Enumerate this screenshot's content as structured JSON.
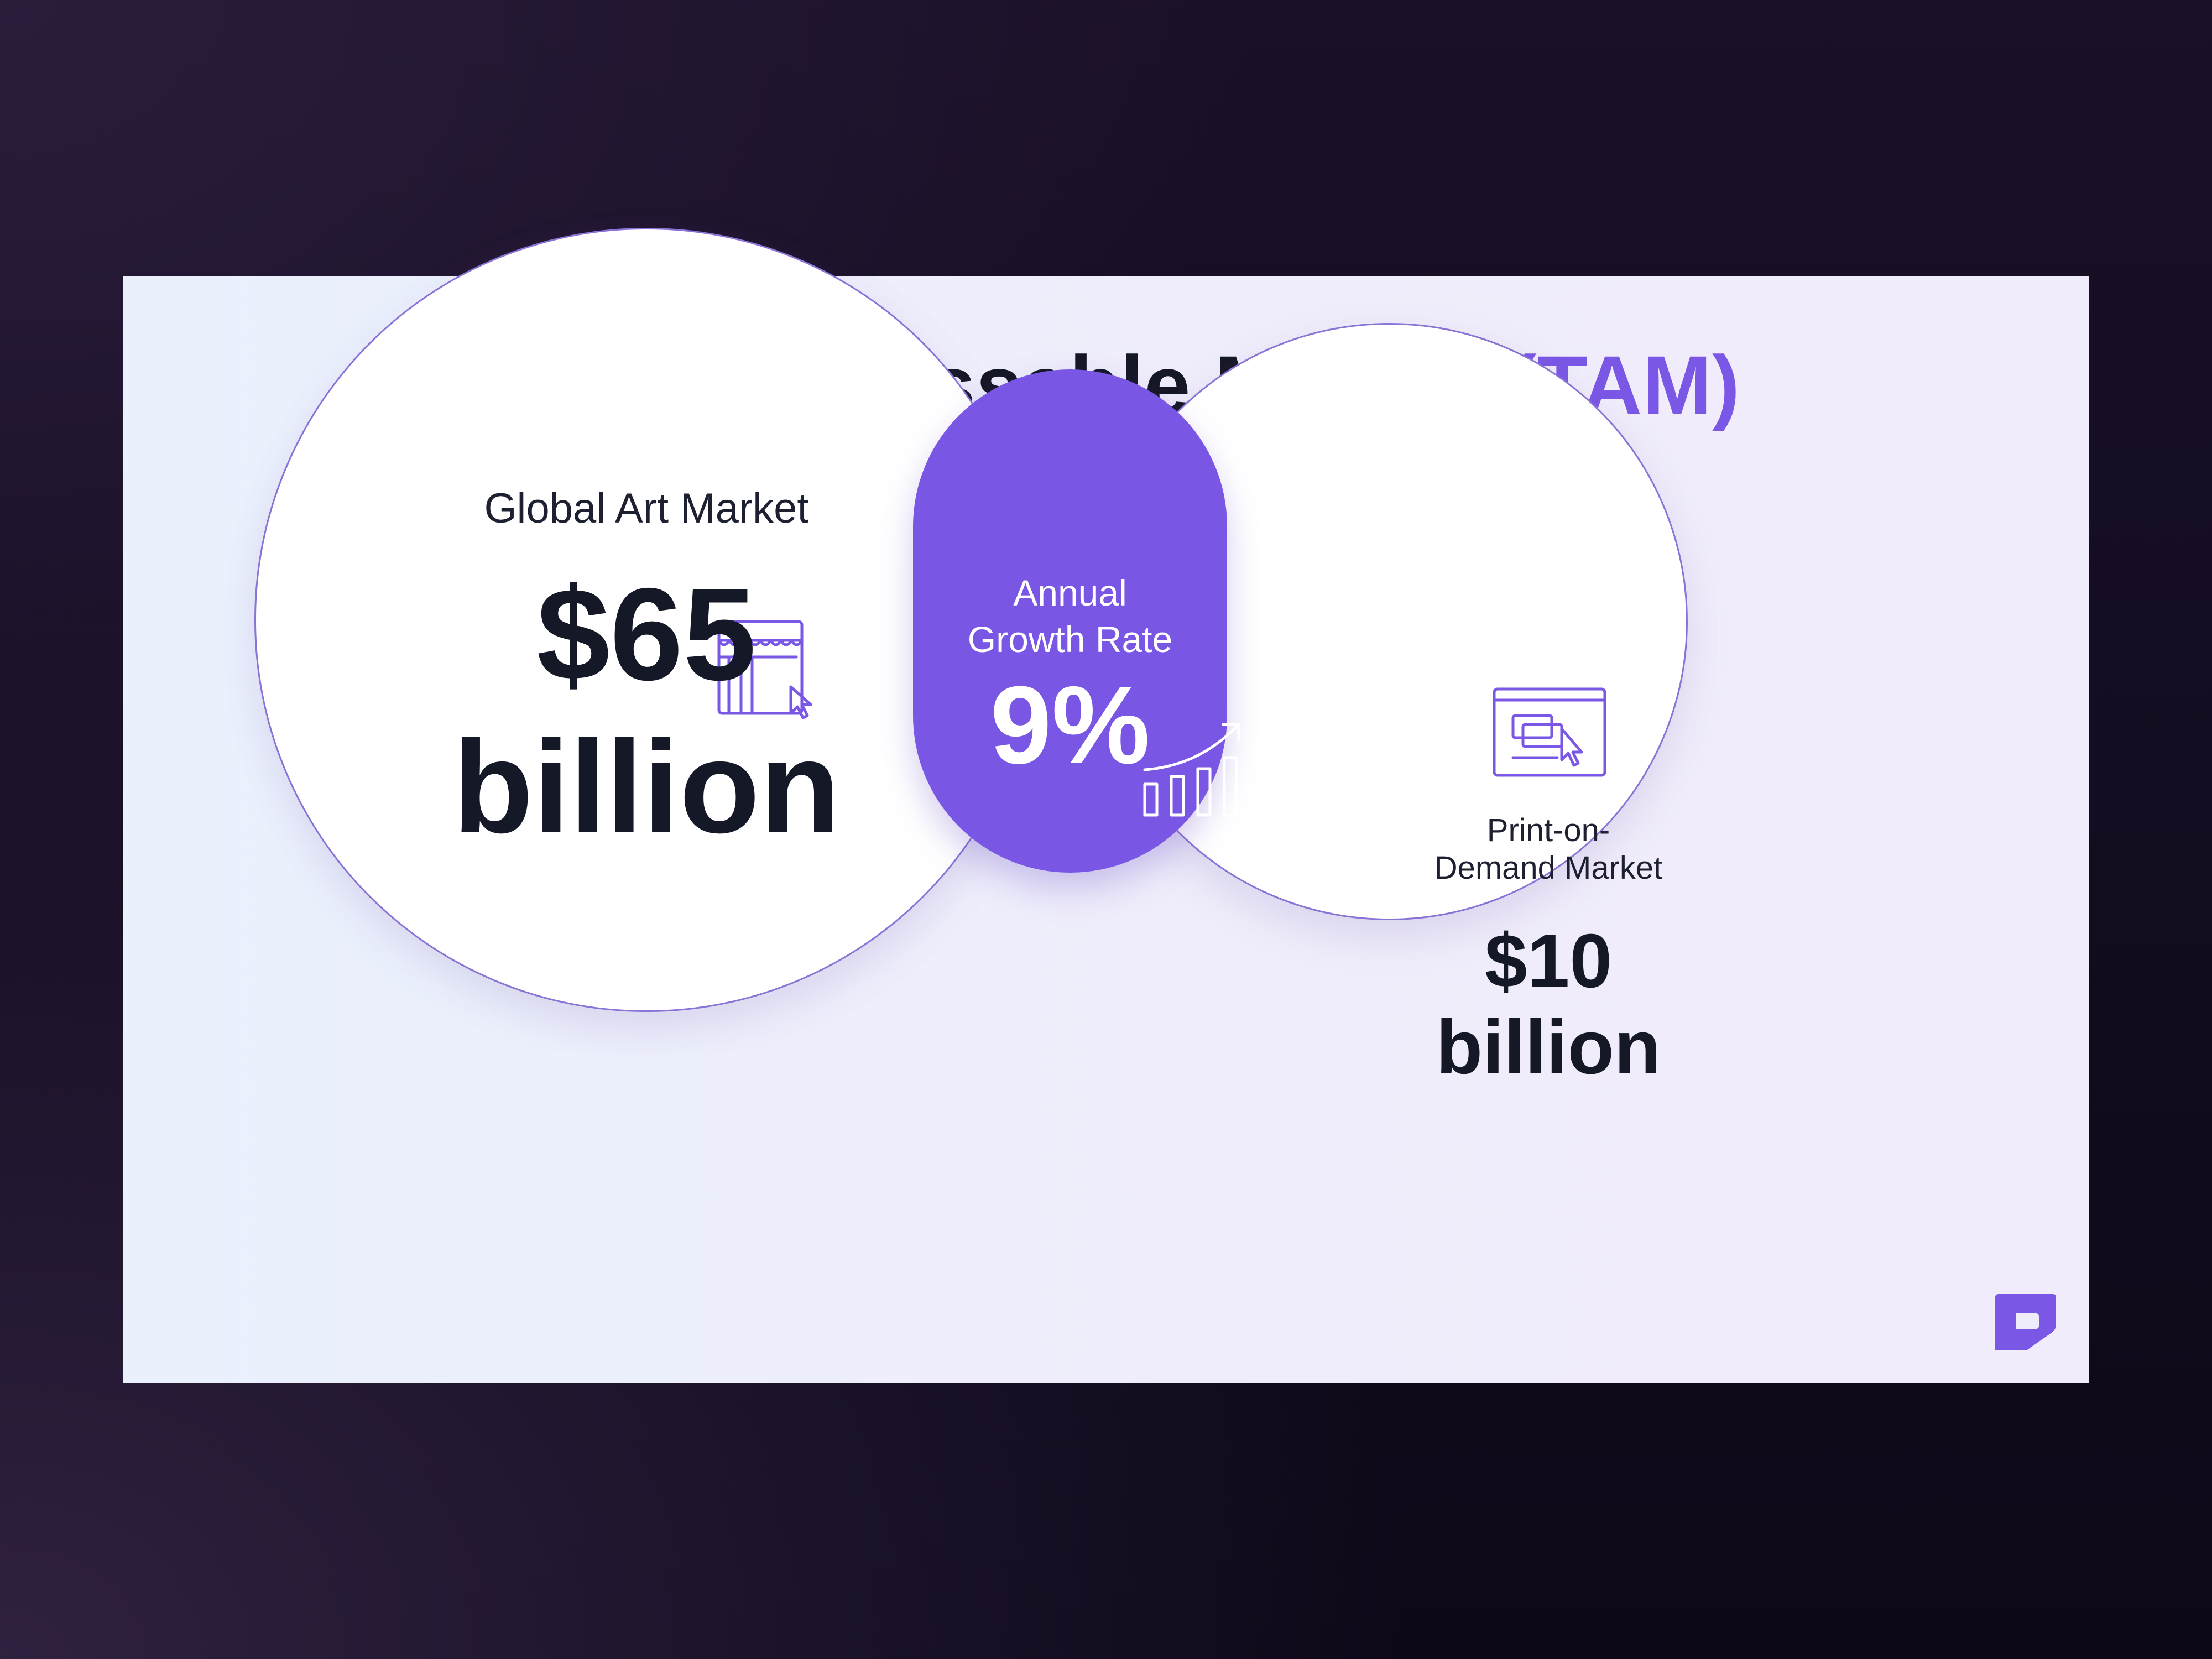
{
  "slide": {
    "title_main": "Total Addressable Market ",
    "title_accent": "(TAM)"
  },
  "global_art": {
    "label": "Global Art Market",
    "value_line1": "$65",
    "value_line2": "billion",
    "icon": "storefront-cursor-icon"
  },
  "growth": {
    "label_line1": "Annual",
    "label_line2": "Growth Rate",
    "value": "9%",
    "icon": "growth-bar-chart-icon"
  },
  "print_on_demand": {
    "label_line1": "Print-on-",
    "label_line2": "Demand Market",
    "value_line1": "$10",
    "value_line2": "billion",
    "icon": "browser-click-icon"
  },
  "brand": {
    "icon": "brand-logo-icon"
  },
  "colors": {
    "accent": "#7b57e6",
    "pill": "#7a56e5",
    "text_dark": "#151826",
    "background_dark": "#120b1f"
  }
}
